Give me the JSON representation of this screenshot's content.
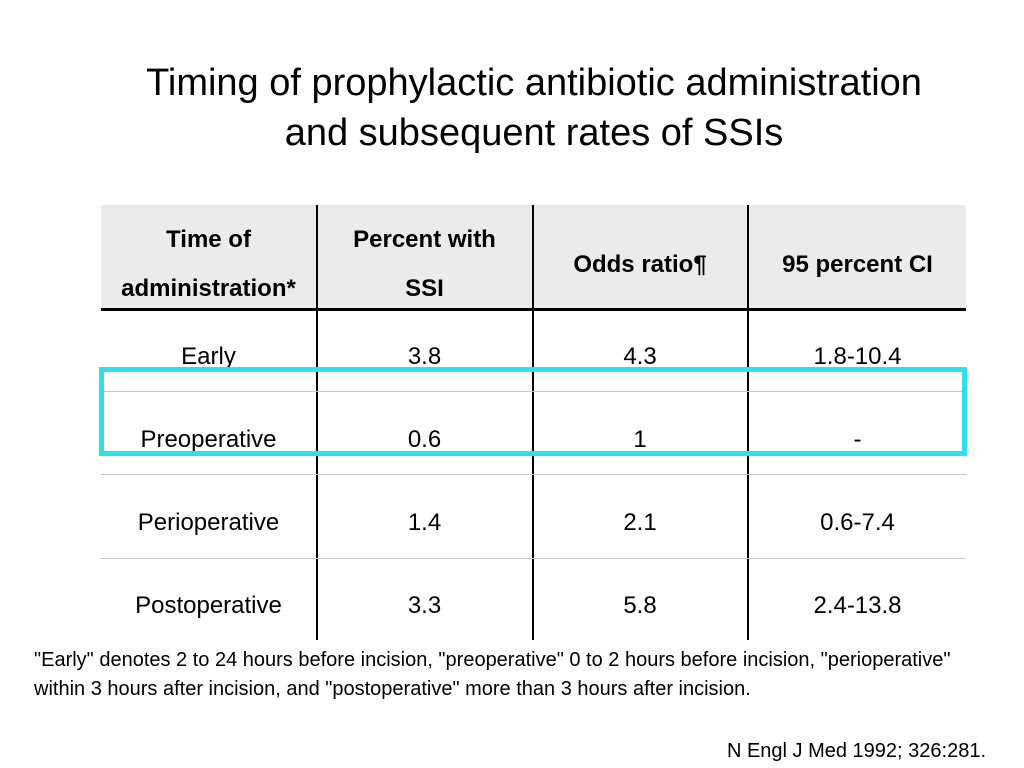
{
  "slide": {
    "title_line1": "Timing of prophylactic antibiotic administration",
    "title_line2": "and subsequent rates of SSIs"
  },
  "table": {
    "headers": {
      "time_line1": "Time of",
      "time_line2": "administration*",
      "percent_line1": "Percent with",
      "percent_line2": "SSI",
      "odds": "Odds ratio¶",
      "ci": "95 percent CI"
    },
    "rows": [
      {
        "time": "Early",
        "percent": "3.8",
        "odds": "4.3",
        "ci": "1.8-10.4"
      },
      {
        "time": "Preoperative",
        "percent": "0.6",
        "odds": "1",
        "ci": "-"
      },
      {
        "time": "Perioperative",
        "percent": "1.4",
        "odds": "2.1",
        "ci": "0.6-7.4"
      },
      {
        "time": "Postoperative",
        "percent": "3.3",
        "odds": "5.8",
        "ci": "2.4-13.8"
      }
    ],
    "highlight_color": "#2ee0ec"
  },
  "footnote": "\"Early\" denotes 2 to 24 hours before incision, \"preoperative\" 0 to 2 hours before incision, \"perioperative\" within 3 hours after incision, and \"postoperative\" more than 3 hours after incision.",
  "citation": "N Engl J Med 1992; 326:281."
}
